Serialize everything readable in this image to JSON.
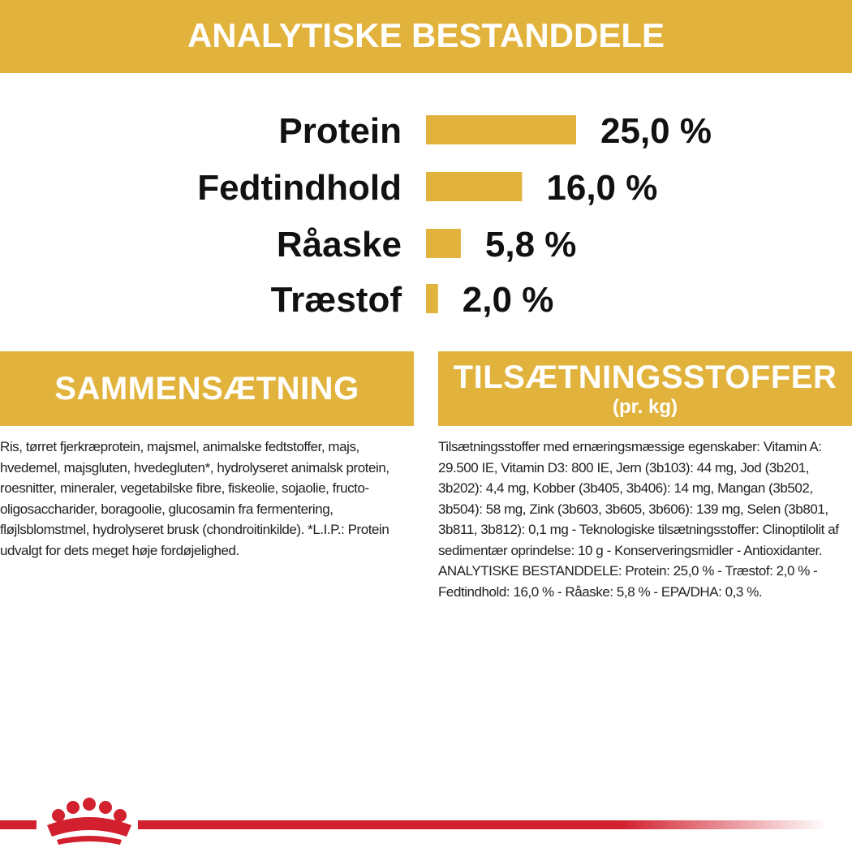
{
  "chart_data": {
    "type": "bar",
    "title": "ANALYTISKE BESTANDDELE",
    "categories": [
      "Protein",
      "Fedtindhold",
      "Råaske",
      "Træstof"
    ],
    "values": [
      25.0,
      16.0,
      5.8,
      2.0
    ],
    "value_labels": [
      "25,0 %",
      "16,0 %",
      "5,8 %",
      "2,0 %"
    ],
    "color": "#e2b33c"
  },
  "sections": [
    {
      "heading": "SAMMENSÆTNING",
      "body": "Ris, tørret fjerkræprotein, majsmel, animalske fedtstoffer, majs, hvedemel, majsgluten, hvedegluten*, hydrolyseret animalsk protein, roesnitter, mineraler, vegetabilske fibre, fiskeolie, sojaolie, fructo-oligosaccharider, boragoolie, glucosamin fra fermentering, fløjlsblomstmel, hydrolyseret brusk (chondroitinkilde). *L.I.P.: Protein udvalgt for dets meget høje fordøjelighed."
    },
    {
      "heading": "TILSÆTNINGSSTOFFER",
      "subheading": "(pr. kg)",
      "body": "Tilsætningsstoffer med ernæringsmæssige egenskaber: Vitamin A: 29.500 IE, Vitamin D3: 800 IE, Jern (3b103): 44 mg, Jod (3b201, 3b202): 4,4 mg, Kobber (3b405, 3b406): 14 mg, Mangan (3b502, 3b504): 58 mg, Zink (3b603, 3b605, 3b606): 139 mg, Selen (3b801, 3b811, 3b812): 0,1 mg - Teknologiske tilsætningsstoffer: Clinoptilolit af sedimentær oprindelse: 10 g - Konserveringsmidler - Antioxidanter. ANALYTISKE BESTANDDELE: Protein: 25,0 % - Træstof: 2,0 % - Fedtindhold: 16,0 % - Råaske: 5,8 % - EPA/DHA: 0,3 %."
    }
  ]
}
